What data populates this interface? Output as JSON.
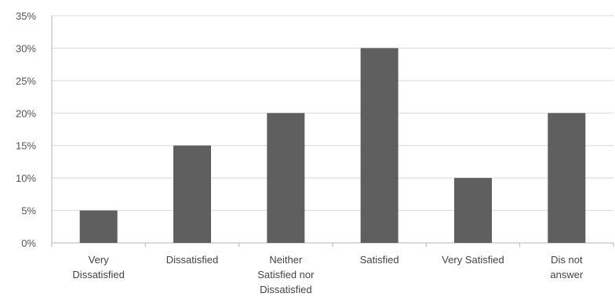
{
  "chart_data": {
    "type": "bar",
    "categories": [
      "Very Dissatisfied",
      "Dissatisfied",
      "Neither Satisfied nor Dissatisfied",
      "Satisfied",
      "Very Satisfied",
      "Dis not answer"
    ],
    "category_lines": [
      [
        "Very",
        "Dissatisfied"
      ],
      [
        "Dissatisfied"
      ],
      [
        "Neither",
        "Satisfied nor",
        "Dissatisfied"
      ],
      [
        "Satisfied"
      ],
      [
        "Very Satisfied"
      ],
      [
        "Dis not",
        "answer"
      ]
    ],
    "values": [
      5,
      15,
      20,
      30,
      10,
      20
    ],
    "ylim": [
      0,
      35
    ],
    "yticks": [
      0,
      5,
      10,
      15,
      20,
      25,
      30,
      35
    ],
    "ytick_labels": [
      "0%",
      "5%",
      "10%",
      "15%",
      "20%",
      "25%",
      "30%",
      "35%"
    ],
    "title": "",
    "xlabel": "",
    "ylabel": "",
    "grid": true,
    "legend": "none",
    "bar_color": "#5f5f5f"
  }
}
